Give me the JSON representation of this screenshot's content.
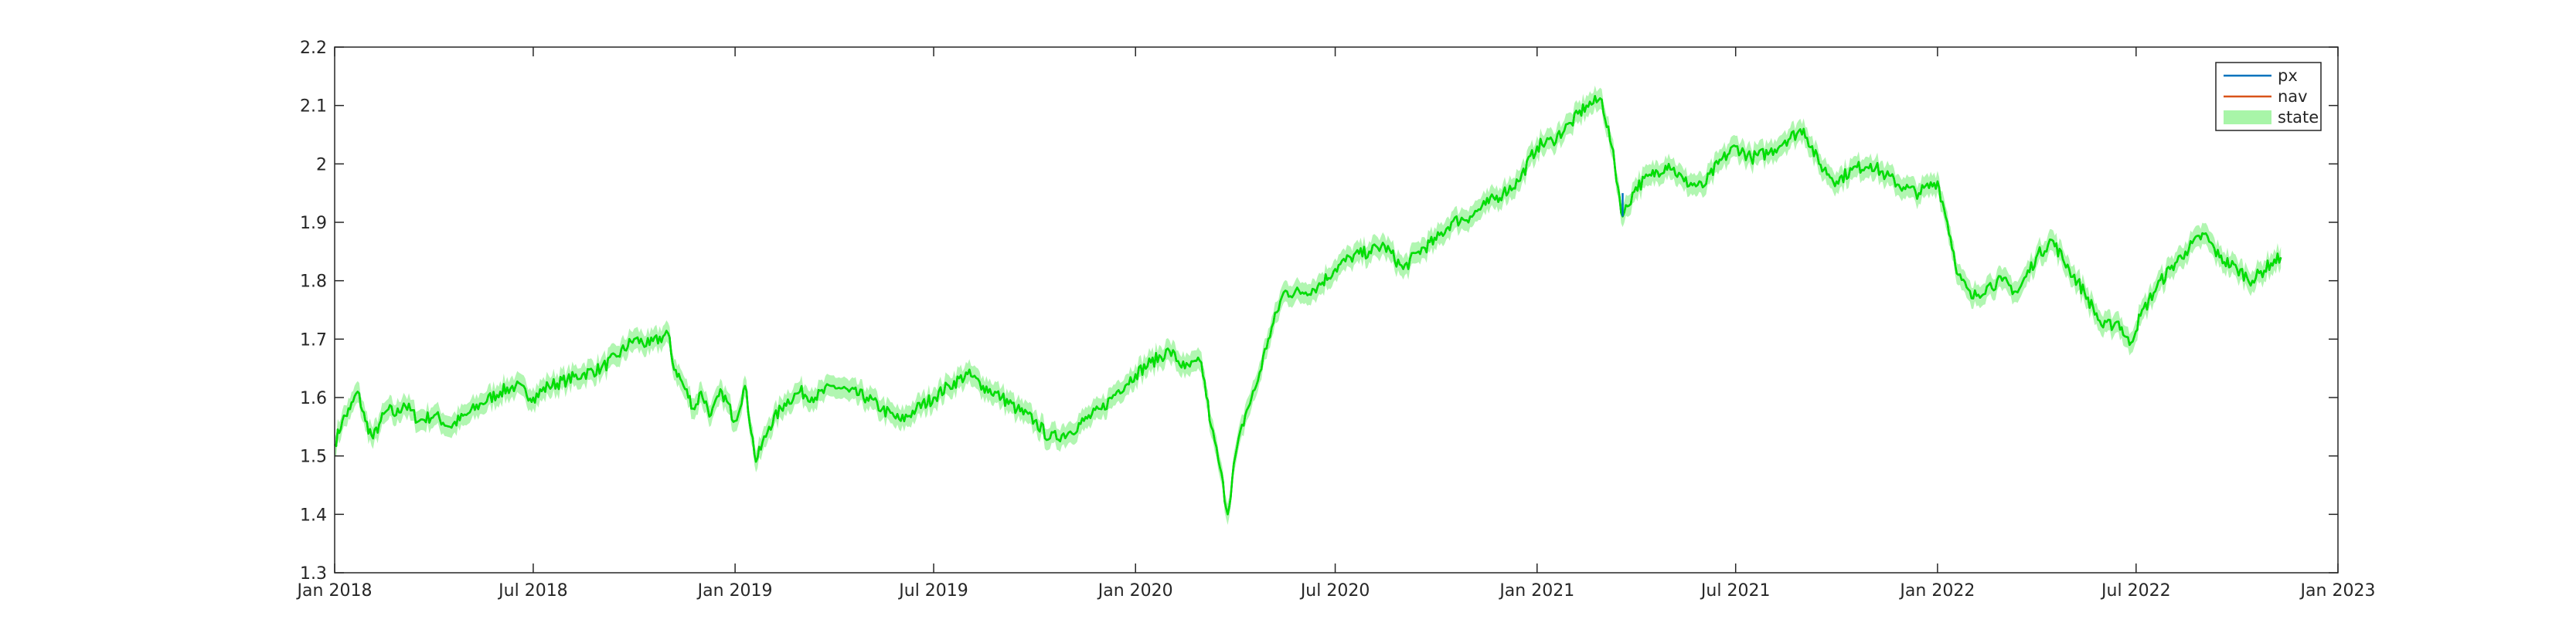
{
  "chart_data": {
    "type": "line",
    "title": "",
    "xlabel": "",
    "ylabel": "",
    "x_axis": {
      "type": "date",
      "range": [
        "2018-01-01",
        "2023-01-01"
      ],
      "ticks": [
        {
          "date": "2018-01-01",
          "label": "Jan 2018"
        },
        {
          "date": "2018-07-01",
          "label": "Jul 2018"
        },
        {
          "date": "2019-01-01",
          "label": "Jan 2019"
        },
        {
          "date": "2019-07-01",
          "label": "Jul 2019"
        },
        {
          "date": "2020-01-01",
          "label": "Jan 2020"
        },
        {
          "date": "2020-07-01",
          "label": "Jul 2020"
        },
        {
          "date": "2021-01-01",
          "label": "Jan 2021"
        },
        {
          "date": "2021-07-01",
          "label": "Jul 2021"
        },
        {
          "date": "2022-01-01",
          "label": "Jan 2022"
        },
        {
          "date": "2022-07-01",
          "label": "Jul 2022"
        },
        {
          "date": "2023-01-01",
          "label": "Jan 2023"
        }
      ]
    },
    "y_axis": {
      "range": [
        1.3,
        2.2
      ],
      "ticks": [
        {
          "value": 1.3,
          "label": "1.3"
        },
        {
          "value": 1.4,
          "label": "1.4"
        },
        {
          "value": 1.5,
          "label": "1.5"
        },
        {
          "value": 1.6,
          "label": "1.6"
        },
        {
          "value": 1.7,
          "label": "1.7"
        },
        {
          "value": 1.8,
          "label": "1.8"
        },
        {
          "value": 1.9,
          "label": "1.9"
        },
        {
          "value": 2.0,
          "label": "2"
        },
        {
          "value": 2.1,
          "label": "2.1"
        },
        {
          "value": 2.2,
          "label": "2.2"
        }
      ]
    },
    "grid": false,
    "legend": {
      "location": "top-right"
    },
    "band_halfwidth": 0.018,
    "series": [
      {
        "name": "px",
        "color": "#0072BD",
        "style": "line"
      },
      {
        "name": "nav",
        "color": "#D95319",
        "style": "line"
      },
      {
        "name": "state",
        "color": "#00E000",
        "fill_color": "#A8F5A8",
        "style": "line-with-band"
      }
    ],
    "x": [
      "2018-01-01",
      "2018-01-08",
      "2018-01-15",
      "2018-01-22",
      "2018-01-29",
      "2018-02-05",
      "2018-02-12",
      "2018-02-19",
      "2018-02-26",
      "2018-03-05",
      "2018-03-19",
      "2018-04-02",
      "2018-04-16",
      "2018-05-01",
      "2018-05-15",
      "2018-06-01",
      "2018-06-15",
      "2018-07-01",
      "2018-07-15",
      "2018-08-01",
      "2018-08-15",
      "2018-09-01",
      "2018-09-15",
      "2018-10-01",
      "2018-10-15",
      "2018-11-01",
      "2018-11-05",
      "2018-11-15",
      "2018-11-25",
      "2018-12-01",
      "2018-12-10",
      "2018-12-20",
      "2019-01-01",
      "2019-01-10",
      "2019-01-20",
      "2019-02-01",
      "2019-02-15",
      "2019-03-01",
      "2019-03-15",
      "2019-04-01",
      "2019-04-15",
      "2019-05-01",
      "2019-05-15",
      "2019-06-01",
      "2019-06-15",
      "2019-07-01",
      "2019-07-15",
      "2019-08-01",
      "2019-08-15",
      "2019-09-01",
      "2019-09-15",
      "2019-10-01",
      "2019-10-15",
      "2019-11-01",
      "2019-11-15",
      "2019-12-01",
      "2019-12-15",
      "2020-01-01",
      "2020-01-15",
      "2020-02-01",
      "2020-02-15",
      "2020-03-01",
      "2020-03-10",
      "2020-03-18",
      "2020-03-25",
      "2020-04-01",
      "2020-04-10",
      "2020-04-20",
      "2020-05-01",
      "2020-05-15",
      "2020-06-01",
      "2020-06-15",
      "2020-07-01",
      "2020-07-15",
      "2020-08-01",
      "2020-08-15",
      "2020-09-01",
      "2020-09-15",
      "2020-10-01",
      "2020-10-15",
      "2020-11-01",
      "2020-11-15",
      "2020-12-01",
      "2020-12-15",
      "2021-01-01",
      "2021-01-15",
      "2021-02-01",
      "2021-02-15",
      "2021-03-01",
      "2021-03-10",
      "2021-03-20",
      "2021-04-01",
      "2021-04-15",
      "2021-05-01",
      "2021-05-15",
      "2021-06-01",
      "2021-06-15",
      "2021-07-01",
      "2021-07-15",
      "2021-08-01",
      "2021-08-15",
      "2021-09-01",
      "2021-09-15",
      "2021-10-01",
      "2021-10-15",
      "2021-11-01",
      "2021-11-15",
      "2021-12-01",
      "2021-12-15",
      "2022-01-01",
      "2022-01-10",
      "2022-01-20",
      "2022-02-01",
      "2022-02-15",
      "2022-03-01",
      "2022-03-15",
      "2022-04-01",
      "2022-04-15",
      "2022-05-01",
      "2022-05-15",
      "2022-06-01",
      "2022-06-15",
      "2022-06-25",
      "2022-07-05",
      "2022-07-20",
      "2022-08-01",
      "2022-08-15",
      "2022-09-01",
      "2022-09-15",
      "2022-10-01",
      "2022-10-15",
      "2022-11-01",
      "2022-11-10"
    ],
    "y": [
      1.52,
      1.56,
      1.58,
      1.61,
      1.56,
      1.53,
      1.56,
      1.58,
      1.57,
      1.59,
      1.56,
      1.57,
      1.55,
      1.57,
      1.59,
      1.61,
      1.62,
      1.6,
      1.62,
      1.63,
      1.64,
      1.65,
      1.67,
      1.7,
      1.69,
      1.71,
      1.66,
      1.62,
      1.58,
      1.61,
      1.57,
      1.61,
      1.56,
      1.62,
      1.49,
      1.55,
      1.59,
      1.61,
      1.6,
      1.62,
      1.61,
      1.6,
      1.58,
      1.56,
      1.58,
      1.6,
      1.62,
      1.64,
      1.62,
      1.6,
      1.58,
      1.56,
      1.53,
      1.54,
      1.56,
      1.58,
      1.61,
      1.64,
      1.66,
      1.68,
      1.65,
      1.66,
      1.55,
      1.48,
      1.4,
      1.5,
      1.57,
      1.62,
      1.7,
      1.78,
      1.78,
      1.79,
      1.82,
      1.84,
      1.85,
      1.86,
      1.82,
      1.85,
      1.87,
      1.9,
      1.91,
      1.93,
      1.95,
      1.97,
      2.03,
      2.04,
      2.07,
      2.1,
      2.11,
      2.03,
      1.91,
      1.96,
      1.98,
      2.0,
      1.97,
      1.96,
      2.0,
      2.03,
      2.01,
      2.02,
      2.04,
      2.06,
      2.0,
      1.97,
      1.99,
      2.0,
      1.98,
      1.96,
      1.95,
      1.97,
      1.9,
      1.81,
      1.77,
      1.79,
      1.8,
      1.78,
      1.84,
      1.87,
      1.82,
      1.78,
      1.72,
      1.73,
      1.69,
      1.74,
      1.79,
      1.82,
      1.85,
      1.88,
      1.84,
      1.82,
      1.8,
      1.83,
      1.84
    ],
    "annotations": [
      {
        "series": "px",
        "date": "2021-03-20",
        "value": 1.91
      }
    ]
  }
}
